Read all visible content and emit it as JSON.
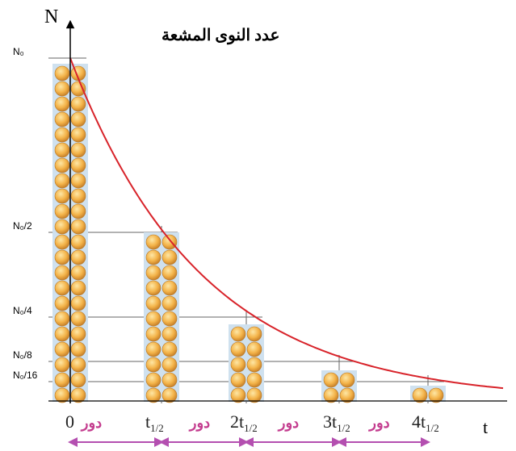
{
  "axes": {
    "y_label": "N",
    "y_title": "عدد النوى المشعة",
    "x_label": "t"
  },
  "y_levels": [
    "N₀",
    "N₀/2",
    "N₀/4",
    "N₀/8",
    "N₀/16"
  ],
  "x_labels": [
    {
      "main": "0"
    },
    {
      "main": "t",
      "sub": "1/2"
    },
    {
      "main": "2t",
      "sub": "1/2"
    },
    {
      "main": "3t",
      "sub": "1/2"
    },
    {
      "main": "4t",
      "sub": "1/2"
    }
  ],
  "period_label": "دور"
}
